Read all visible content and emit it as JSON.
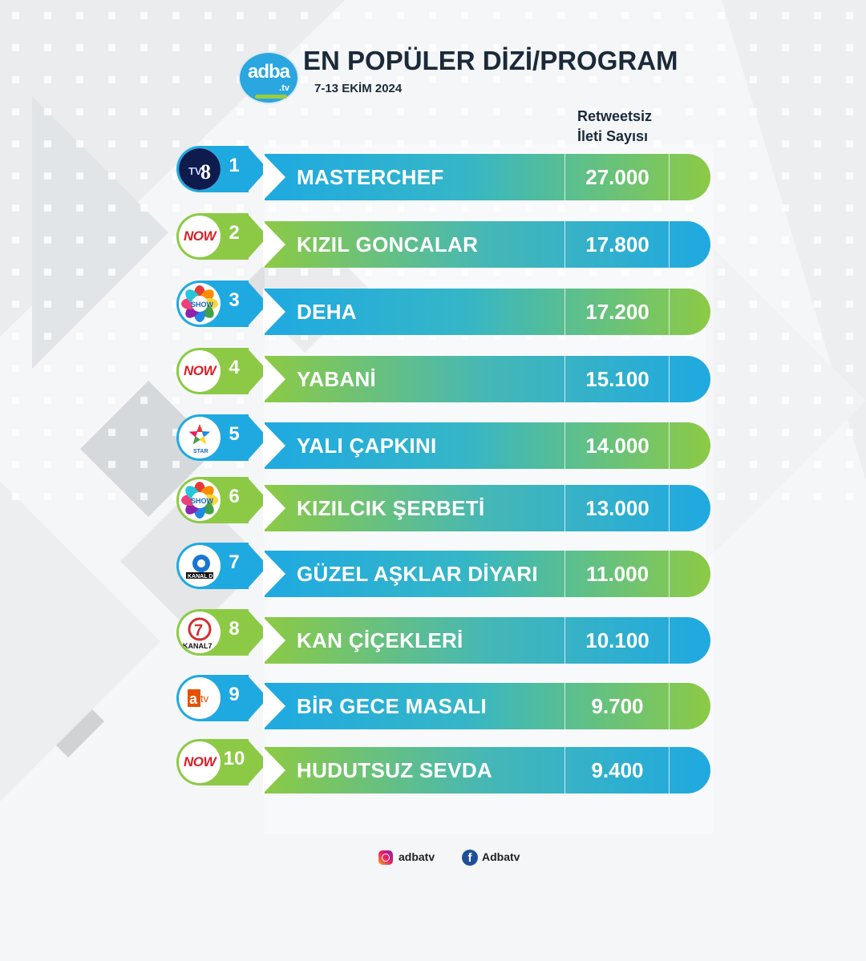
{
  "header": {
    "logo_text": "adba",
    "logo_sub": ".tv",
    "title": "EN POPÜLER DİZİ/PROGRAM",
    "date": "7-13 EKİM 2024",
    "column_header_line1": "Retweetsiz",
    "column_header_line2": "İleti Sayısı"
  },
  "rows": [
    {
      "rank": "1",
      "channel": "TV8",
      "channel_icon": "tv8-logo",
      "name": "MASTERCHEF",
      "count": "27.000",
      "style": "blue-green"
    },
    {
      "rank": "2",
      "channel": "NOW",
      "channel_icon": "now-logo",
      "name": "KIZIL GONCALAR",
      "count": "17.800",
      "style": "green-blue"
    },
    {
      "rank": "3",
      "channel": "SHOW",
      "channel_icon": "show-tv-logo",
      "name": "DEHA",
      "count": "17.200",
      "style": "blue-green"
    },
    {
      "rank": "4",
      "channel": "NOW",
      "channel_icon": "now-logo",
      "name": "YABANİ",
      "count": "15.100",
      "style": "green-blue"
    },
    {
      "rank": "5",
      "channel": "STAR",
      "channel_icon": "star-tv-logo",
      "name": "YALI ÇAPKINI",
      "count": "14.000",
      "style": "blue-green"
    },
    {
      "rank": "6",
      "channel": "SHOW",
      "channel_icon": "show-tv-logo",
      "name": "KIZILCIK ŞERBETİ",
      "count": "13.000",
      "style": "green-blue"
    },
    {
      "rank": "7",
      "channel": "KANAL D",
      "channel_icon": "kanal-d-logo",
      "name": "GÜZEL AŞKLAR DİYARI",
      "count": "11.000",
      "style": "blue-green"
    },
    {
      "rank": "8",
      "channel": "KANAL7",
      "channel_icon": "kanal7-logo",
      "name": "KAN ÇİÇEKLERİ",
      "count": "10.100",
      "style": "green-blue"
    },
    {
      "rank": "9",
      "channel": "atv",
      "channel_icon": "atv-logo",
      "name": "BİR GECE MASALI",
      "count": "9.700",
      "style": "blue-green"
    },
    {
      "rank": "10",
      "channel": "NOW",
      "channel_icon": "now-logo",
      "name": "HUDUTSUZ SEVDA",
      "count": "9.400",
      "style": "green-blue"
    }
  ],
  "footer": {
    "instagram_handle": "adbatv",
    "instagram_icon": "instagram-icon",
    "facebook_handle": "Adbatv",
    "facebook_icon": "facebook-icon"
  },
  "colors": {
    "blue": "#1fa9e1",
    "green": "#8cca45",
    "title": "#1b2a3a",
    "now_red": "#d81f26"
  }
}
